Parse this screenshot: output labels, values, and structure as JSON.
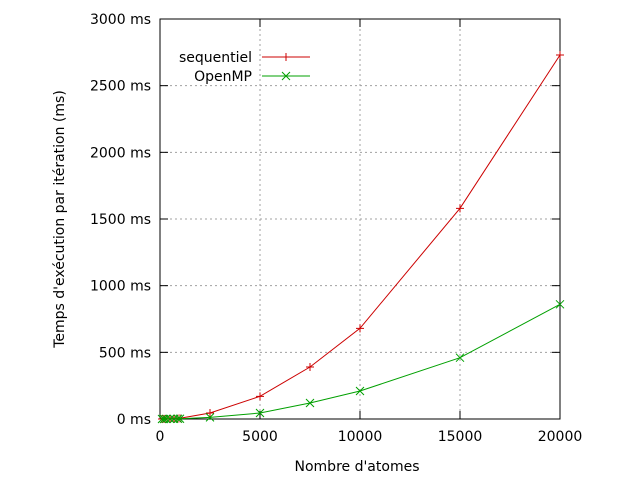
{
  "chart_data": {
    "type": "line",
    "title": "",
    "xlabel": "Nombre d'atomes",
    "ylabel": "Temps d'exécution par itération (ms)",
    "xlim": [
      0,
      20000
    ],
    "ylim": [
      0,
      3000
    ],
    "xticks": [
      0,
      5000,
      10000,
      15000,
      20000
    ],
    "xtick_labels": [
      "0",
      "5000",
      "10000",
      "15000",
      "20000"
    ],
    "yticks": [
      0,
      500,
      1000,
      1500,
      2000,
      2500,
      3000
    ],
    "ytick_labels": [
      "0 ms",
      "500 ms",
      "1000 ms",
      "1500 ms",
      "2000 ms",
      "2500 ms",
      "3000 ms"
    ],
    "grid": true,
    "legend_position": "top-left",
    "series": [
      {
        "name": "sequentiel",
        "color": "#cc0000",
        "marker": "plus",
        "x": [
          100,
          200,
          300,
          500,
          700,
          900,
          1000,
          2500,
          5000,
          7500,
          10000,
          15000,
          20000
        ],
        "y": [
          0,
          1,
          1,
          2,
          3,
          4,
          5,
          45,
          170,
          390,
          680,
          1580,
          2730
        ]
      },
      {
        "name": "OpenMP",
        "color": "#00a000",
        "marker": "cross",
        "x": [
          100,
          200,
          300,
          500,
          700,
          900,
          1000,
          2500,
          5000,
          7500,
          10000,
          15000,
          20000
        ],
        "y": [
          0,
          0,
          1,
          1,
          1,
          2,
          2,
          12,
          45,
          120,
          210,
          460,
          860
        ]
      }
    ]
  }
}
